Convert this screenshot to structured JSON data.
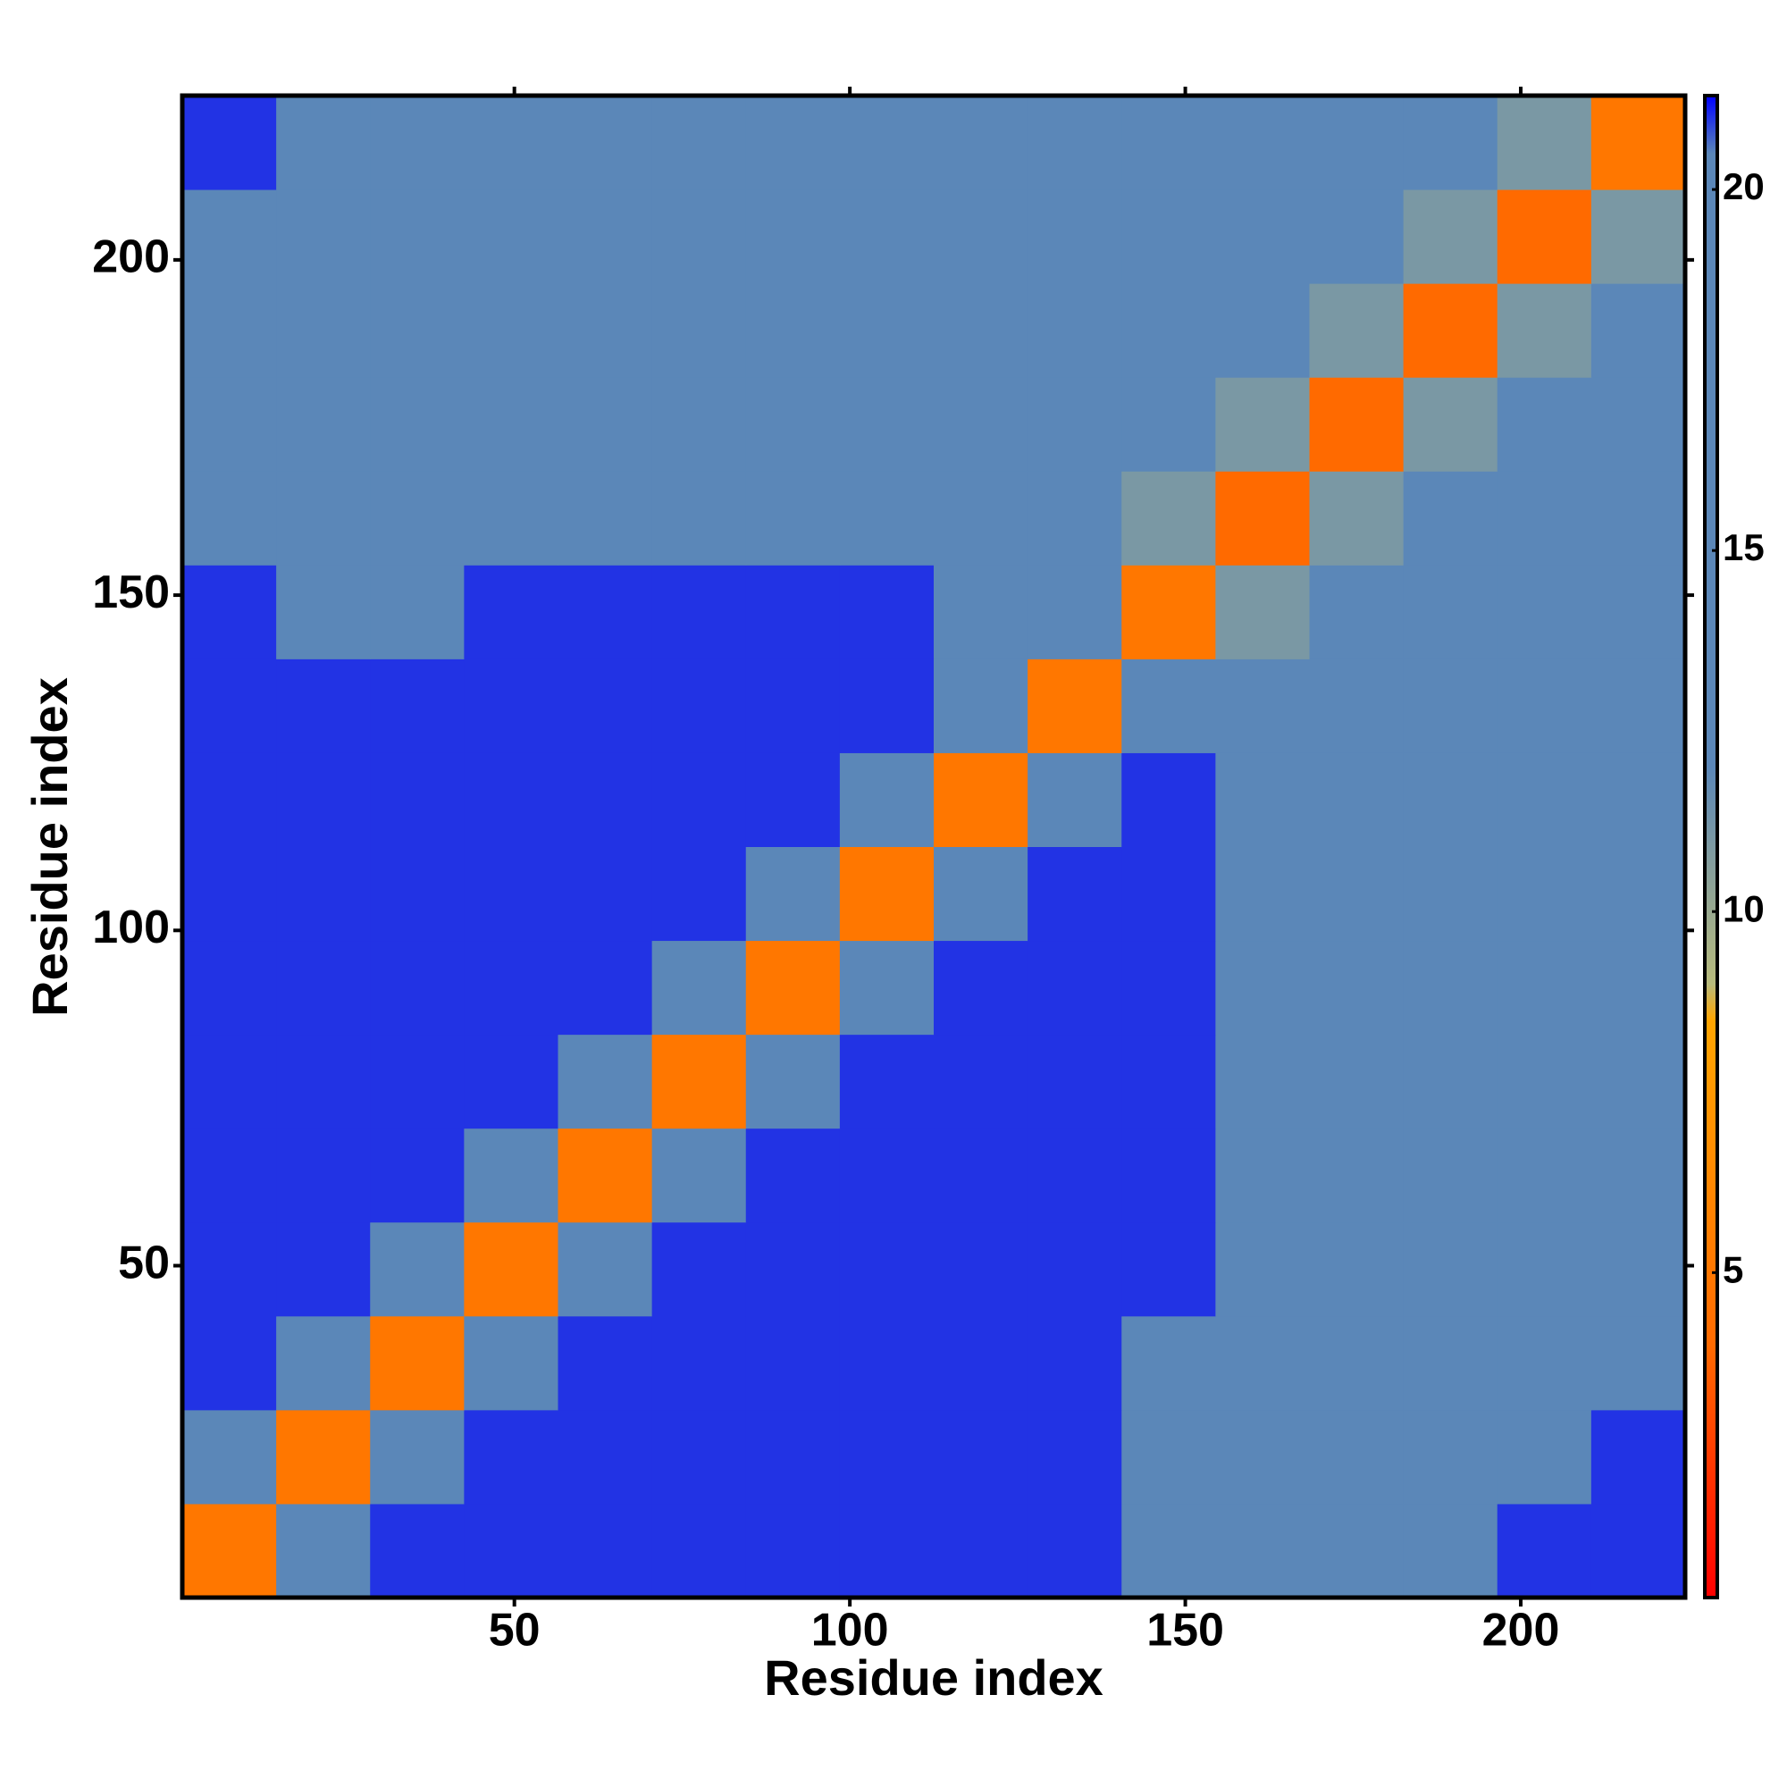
{
  "chart_data": {
    "type": "heatmap",
    "xlabel": "Residue index",
    "ylabel": "Residue index",
    "xlim": [
      0.5,
      224.5
    ],
    "ylim": [
      0.5,
      224.5
    ],
    "xticks": [
      50,
      100,
      150,
      200
    ],
    "yticks": [
      50,
      100,
      150,
      200
    ],
    "xbins": [
      0.5,
      14.5,
      28.5,
      42.5,
      56.5,
      70.5,
      84.5,
      98.5,
      112.5,
      126.5,
      140.5,
      154.5,
      168.5,
      182.5,
      196.5,
      210.5,
      224.5
    ],
    "ybins": [
      0.5,
      14.5,
      28.5,
      42.5,
      56.5,
      70.5,
      84.5,
      98.5,
      112.5,
      126.5,
      140.5,
      154.5,
      168.5,
      182.5,
      196.5,
      210.5,
      224.5
    ],
    "z": [
      [
        5,
        13,
        21,
        21,
        21,
        21,
        21,
        21,
        21,
        21,
        20,
        20,
        20,
        20,
        21,
        21
      ],
      [
        13,
        5,
        13,
        21,
        21,
        21,
        21,
        21,
        21,
        21,
        20,
        20,
        19,
        20,
        20,
        21
      ],
      [
        21,
        13,
        5,
        13,
        21,
        21,
        21,
        21,
        21,
        21,
        20,
        19,
        19,
        20,
        19,
        20
      ],
      [
        21,
        21,
        13,
        5,
        13,
        21,
        21,
        21,
        21,
        21,
        21,
        19,
        19,
        19,
        19,
        20
      ],
      [
        21,
        21,
        21,
        13,
        5,
        13,
        21,
        21,
        21,
        21,
        21,
        19,
        19,
        19,
        20,
        20
      ],
      [
        21,
        21,
        21,
        21,
        13,
        5,
        13,
        21,
        21,
        21,
        21,
        19,
        19,
        19,
        19,
        20
      ],
      [
        21,
        21,
        21,
        21,
        21,
        13,
        5,
        13,
        21,
        21,
        21,
        19,
        19,
        19,
        19,
        20
      ],
      [
        21,
        21,
        21,
        21,
        21,
        21,
        13,
        5,
        13,
        21,
        21,
        19,
        19,
        19,
        19,
        20
      ],
      [
        21,
        21,
        21,
        21,
        21,
        21,
        21,
        13,
        5,
        13,
        21,
        18,
        18,
        18,
        18,
        19
      ],
      [
        21,
        21,
        21,
        21,
        21,
        21,
        21,
        21,
        13,
        5,
        13,
        16,
        16,
        17,
        17,
        18
      ],
      [
        21,
        20,
        20,
        21,
        21,
        21,
        21,
        21,
        20,
        13,
        5,
        11,
        14,
        15,
        15,
        16
      ],
      [
        20,
        19,
        19,
        19,
        19,
        19,
        19,
        20,
        19,
        17,
        11,
        4,
        11,
        14,
        15,
        15
      ],
      [
        20,
        18,
        18,
        18,
        18,
        18,
        18,
        18,
        18,
        16,
        14,
        11,
        4,
        11,
        14,
        15
      ],
      [
        20,
        19,
        19,
        19,
        19,
        19,
        19,
        19,
        19,
        17,
        15,
        14,
        11,
        4,
        11,
        14
      ],
      [
        20,
        19,
        19,
        19,
        19,
        19,
        19,
        19,
        19,
        17,
        15,
        15,
        14,
        11,
        4,
        11
      ],
      [
        21,
        20,
        20,
        20,
        20,
        20,
        20,
        20,
        19,
        18,
        15,
        15,
        15,
        14,
        11,
        5
      ]
    ],
    "colorscale": [
      {
        "value": 0.5,
        "color": "#ff0000"
      },
      {
        "value": 4,
        "color": "#ff6a00"
      },
      {
        "value": 8.5,
        "color": "#ffa500"
      },
      {
        "value": 9,
        "color": "#b8bb7c"
      },
      {
        "value": 12,
        "color": "#5b87b8"
      },
      {
        "value": 20.5,
        "color": "#5b87b8"
      },
      {
        "value": 21.3,
        "color": "#0000ff"
      }
    ],
    "zlim": [
      0.5,
      21.3
    ],
    "zticks": [
      5,
      10,
      15,
      20
    ]
  }
}
